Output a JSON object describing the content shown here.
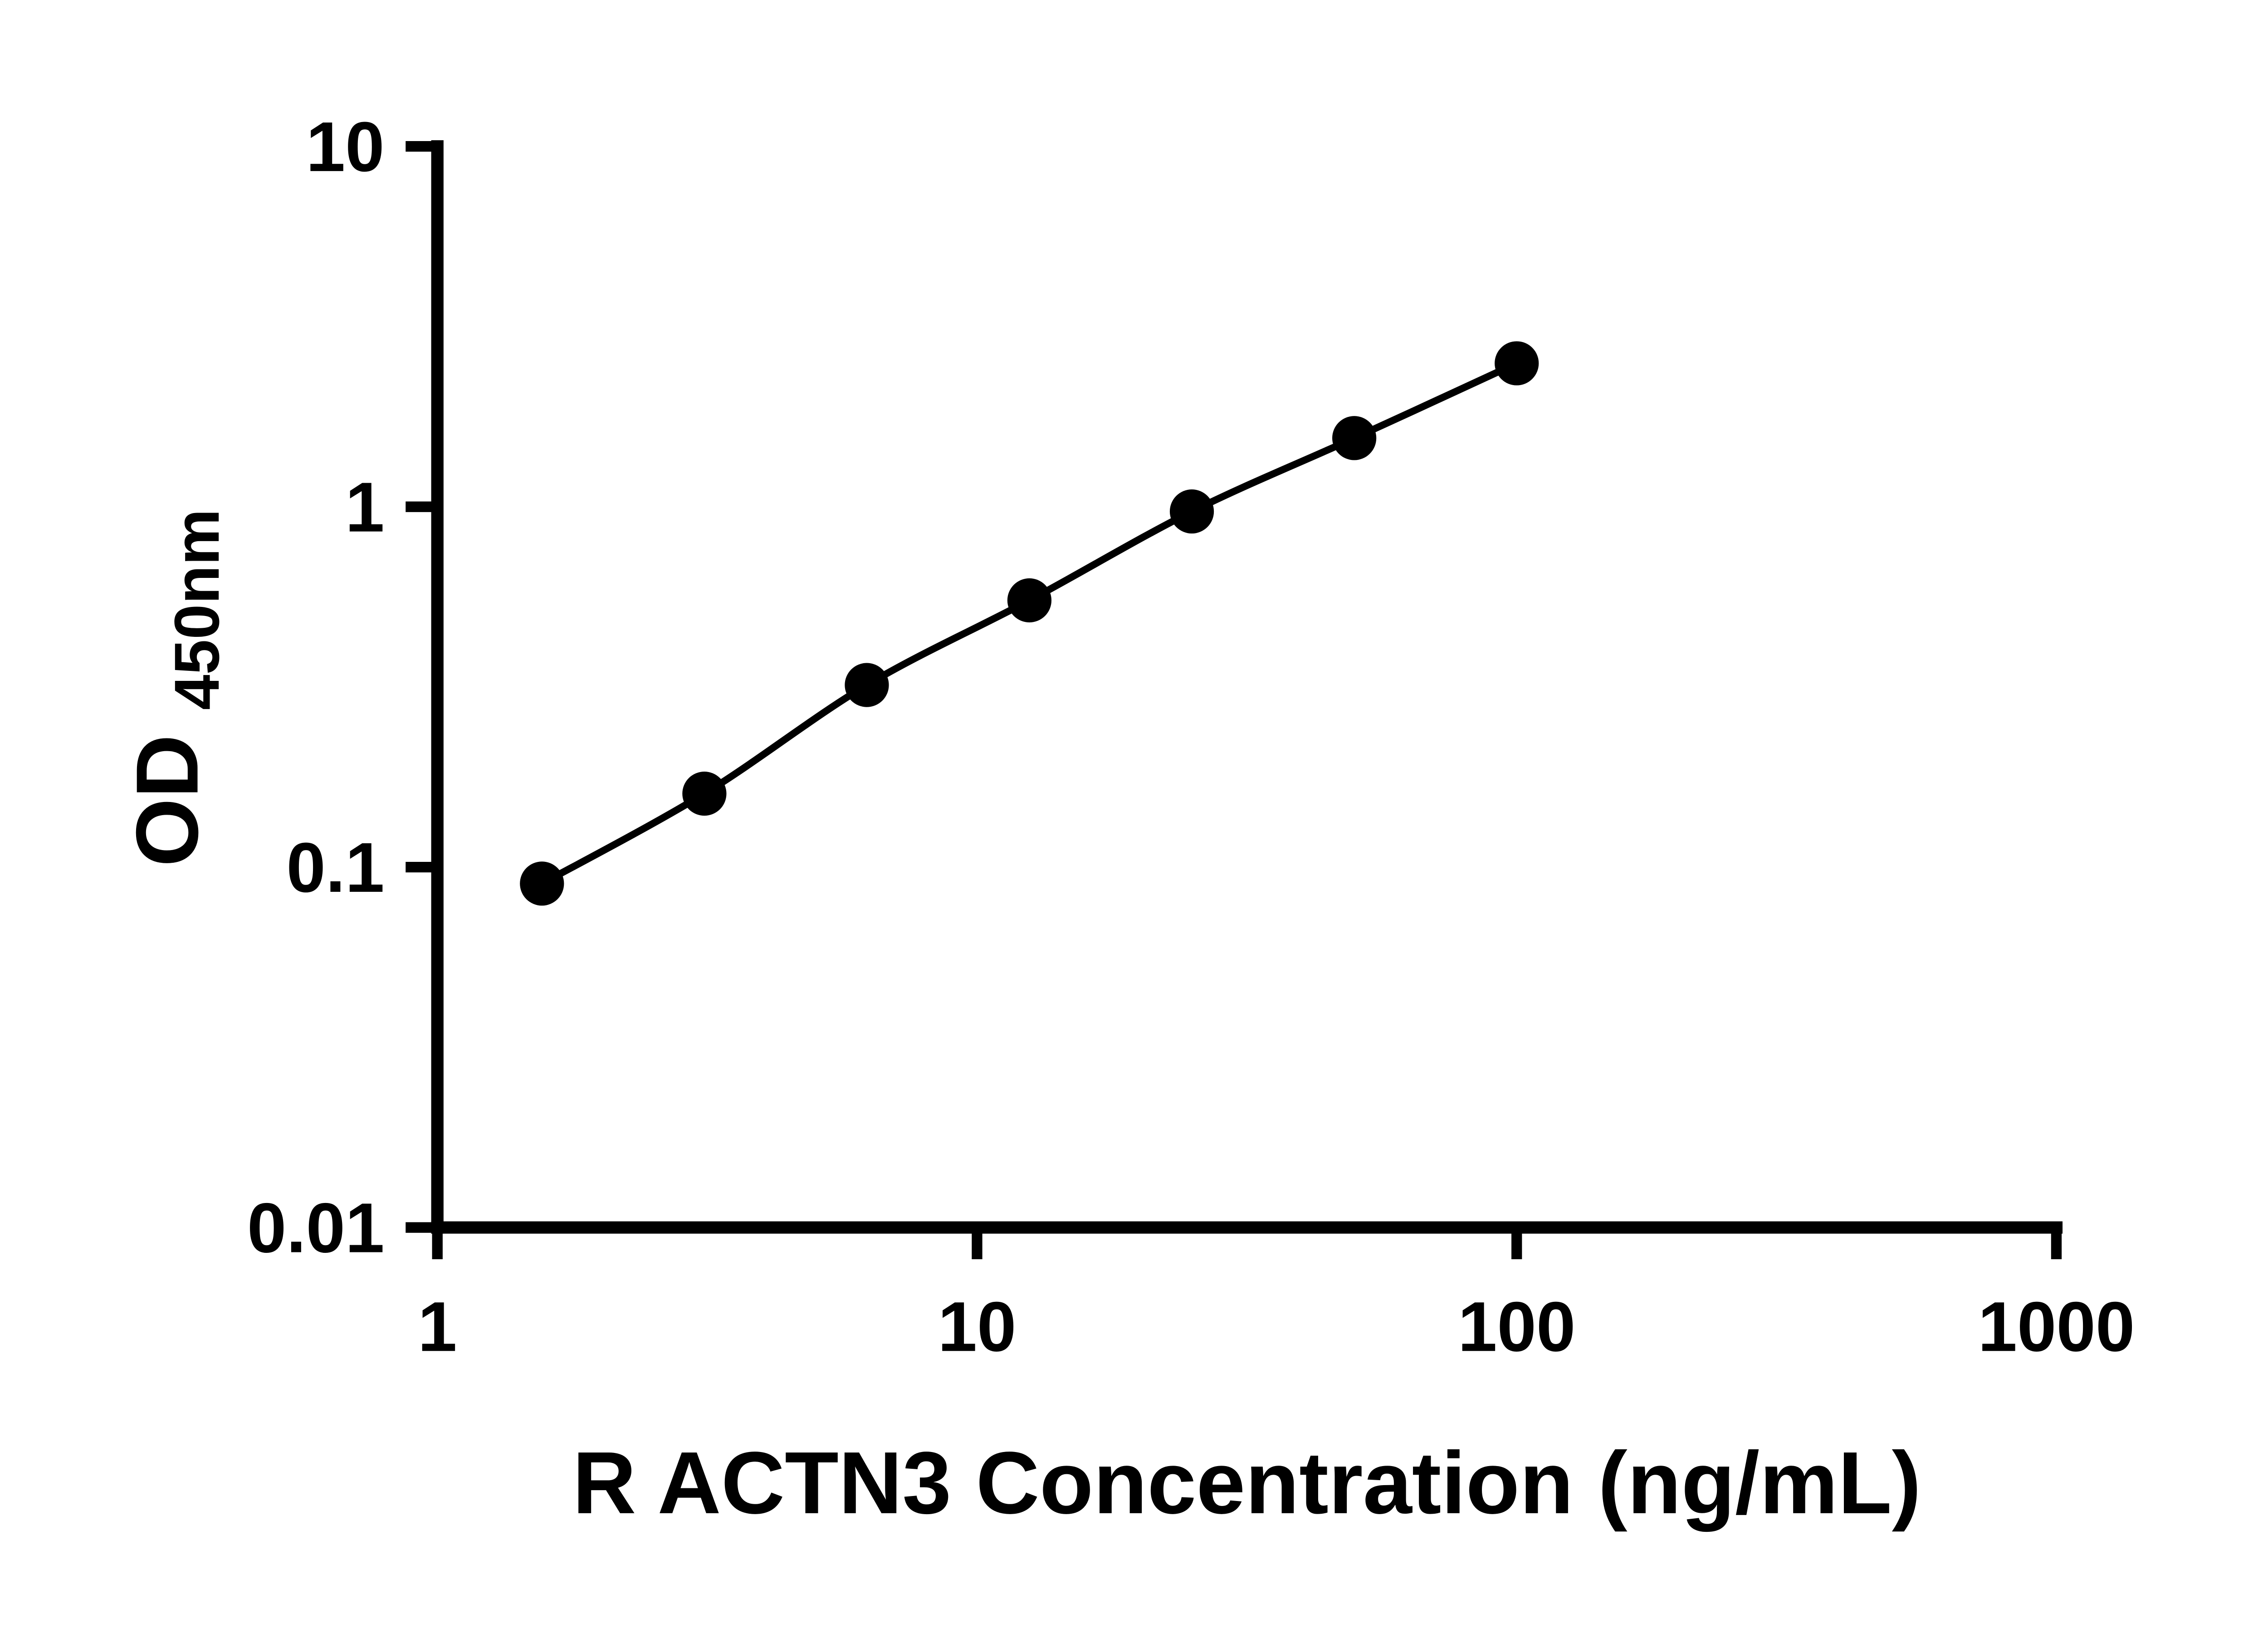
{
  "figure": {
    "description_name": "ELISA standard curve"
  },
  "colors": {
    "background": "#ffffff",
    "axis": "#000000",
    "marker": "#000000",
    "line": "#000000",
    "text": "#000000"
  },
  "chart_data": {
    "type": "line",
    "title": "",
    "xlabel": "R ACTN3 Concentration (ng/mL)",
    "ylabel": "OD450nm",
    "ylabel_base": "OD",
    "ylabel_sub": "450nm",
    "xscale": "log",
    "yscale": "log",
    "xlim": [
      1,
      1000
    ],
    "ylim": [
      0.01,
      10
    ],
    "grid": false,
    "legend_position": "none",
    "x_ticks": {
      "values": [
        1,
        10,
        100,
        1000
      ],
      "labels": [
        "1",
        "10",
        "100",
        "1000"
      ]
    },
    "y_ticks": {
      "values": [
        0.01,
        0.1,
        1,
        10
      ],
      "labels": [
        "0.01",
        "0.1",
        "1",
        "10"
      ]
    },
    "series": [
      {
        "marker": "circle",
        "marker_color": "#000000",
        "line_color": "#000000",
        "x": [
          1.5625,
          3.125,
          6.25,
          12.5,
          25,
          50,
          100
        ],
        "y": [
          0.09,
          0.16,
          0.32,
          0.55,
          0.97,
          1.55,
          2.5
        ]
      }
    ]
  }
}
